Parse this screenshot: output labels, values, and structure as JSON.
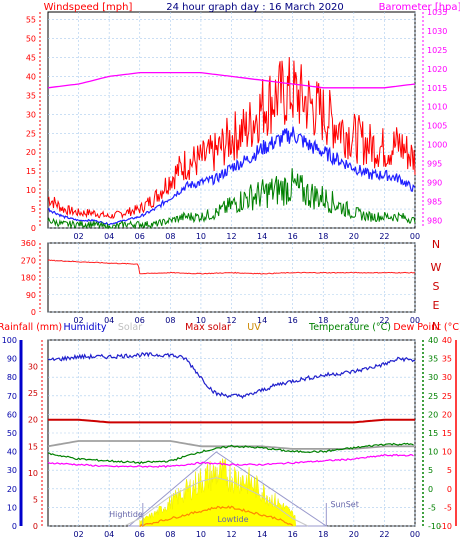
{
  "chart_data": [
    {
      "type": "line",
      "title": "24 hour graph day : 16 March 2020",
      "left_label": "Windspeed [mph]",
      "right_label": "Barometer [hpa]",
      "x_ticks": [
        "02",
        "04",
        "06",
        "08",
        "10",
        "12",
        "14",
        "16",
        "18",
        "20",
        "22",
        "00"
      ],
      "y_left_ticks": [
        0,
        5,
        10,
        15,
        20,
        25,
        30,
        35,
        40,
        45,
        50,
        55
      ],
      "y_left_range": [
        0,
        57
      ],
      "y_right_ticks": [
        980,
        985,
        990,
        995,
        1000,
        1005,
        1010,
        1015,
        1020,
        1025,
        1030,
        1035
      ],
      "y_right_range": [
        978,
        1035
      ],
      "grid": true,
      "series": [
        {
          "key": "gust",
          "color": "#ff0000",
          "x": [
            0,
            1,
            2,
            3,
            4,
            5,
            6,
            7,
            8,
            9,
            10,
            11,
            12,
            13,
            14,
            15,
            16,
            17,
            18,
            19,
            20,
            21,
            22,
            23,
            24
          ],
          "values": [
            8,
            5,
            4,
            4,
            3,
            4,
            5,
            8,
            13,
            17,
            18,
            20,
            24,
            26,
            32,
            35,
            36,
            33,
            30,
            27,
            24,
            22,
            21,
            22,
            18
          ]
        },
        {
          "key": "average",
          "color": "#2020ff",
          "x": [
            0,
            1,
            2,
            3,
            4,
            5,
            6,
            7,
            8,
            9,
            10,
            11,
            12,
            13,
            14,
            15,
            16,
            17,
            18,
            19,
            20,
            21,
            22,
            23,
            24
          ],
          "values": [
            5,
            3,
            2,
            2,
            1,
            2,
            3,
            5,
            8,
            11,
            12,
            13,
            16,
            18,
            21,
            23,
            25,
            22,
            20,
            18,
            16,
            14,
            14,
            13,
            10
          ]
        },
        {
          "key": "speed",
          "color": "#008000",
          "x": [
            0,
            1,
            2,
            3,
            4,
            5,
            6,
            7,
            8,
            9,
            10,
            11,
            12,
            13,
            14,
            15,
            16,
            17,
            18,
            19,
            20,
            21,
            22,
            23,
            24
          ],
          "values": [
            2,
            1,
            1,
            1,
            0,
            1,
            1,
            1,
            2,
            3,
            3,
            4,
            6,
            8,
            9,
            10,
            11,
            9,
            8,
            6,
            4,
            3,
            3,
            3,
            2
          ]
        },
        {
          "key": "barometer",
          "color": "#ff00ff",
          "x": [
            0,
            2,
            4,
            6,
            8,
            10,
            12,
            14,
            16,
            18,
            20,
            22,
            24
          ],
          "values": [
            1015,
            1016,
            1018,
            1019,
            1019,
            1019,
            1018,
            1017,
            1016,
            1015,
            1015,
            1015,
            1016
          ]
        }
      ]
    },
    {
      "type": "line",
      "x_ticks": [
        "02",
        "04",
        "06",
        "08",
        "10",
        "12",
        "14",
        "16",
        "18",
        "20",
        "22",
        "00"
      ],
      "y_left_ticks": [
        0,
        90,
        180,
        270,
        360
      ],
      "y_left_range": [
        0,
        360
      ],
      "direction_labels": [
        "N",
        "W",
        "S",
        "E",
        "N"
      ],
      "grid": true,
      "series": [
        {
          "key": "wind_direction",
          "color": "#ff2020",
          "x": [
            0,
            2,
            4,
            5.9,
            6,
            8,
            10,
            12,
            14,
            16,
            18,
            20,
            22,
            24
          ],
          "values": [
            270,
            262,
            255,
            250,
            200,
            205,
            200,
            205,
            200,
            205,
            205,
            205,
            205,
            205
          ]
        }
      ]
    },
    {
      "type": "line",
      "legend": [
        "Rainfall (mm)",
        "Humidity",
        "Solar",
        "Max solar",
        "UV",
        "Temperature (°C)",
        "Dew Point (°C)"
      ],
      "legend_colors": [
        "#ff0000",
        "#0000cc",
        "#c0c0c0",
        "#cc0000",
        "#cc8800",
        "#008000",
        "#ff0000"
      ],
      "x_ticks": [
        "02",
        "04",
        "06",
        "08",
        "10",
        "12",
        "14",
        "16",
        "18",
        "20",
        "22",
        "00"
      ],
      "rain_ticks": [
        0,
        5,
        10,
        15,
        20,
        25,
        30
      ],
      "humidity_ticks": [
        0,
        10,
        20,
        30,
        40,
        50,
        60,
        70,
        80,
        90,
        100
      ],
      "temp_ticks": [
        -10,
        -5,
        0,
        5,
        10,
        15,
        20,
        25,
        30,
        35,
        40
      ],
      "temp_range": [
        -10,
        40
      ],
      "grid": true,
      "annotations": [
        "Hightide",
        "Lowtide",
        "SunSet"
      ],
      "series": [
        {
          "key": "humidity",
          "color": "#2020cc",
          "x": [
            0,
            2,
            4,
            6,
            8,
            9,
            10,
            10.5,
            11,
            12,
            13,
            14,
            15,
            16,
            18,
            20,
            22,
            23,
            24
          ],
          "values": [
            89,
            91,
            91,
            92,
            92,
            90,
            80,
            75,
            71,
            70,
            70,
            73,
            76,
            78,
            81,
            83,
            87,
            90,
            89
          ]
        },
        {
          "key": "temperature",
          "color": "#008000",
          "x": [
            0,
            2,
            4,
            6,
            8,
            10,
            12,
            14,
            16,
            18,
            20,
            22,
            24
          ],
          "values": [
            9.5,
            8,
            7.5,
            7,
            7.5,
            10,
            11.5,
            11,
            10,
            10,
            11,
            12,
            12
          ]
        },
        {
          "key": "dewpoint",
          "color": "#ff00ff",
          "x": [
            0,
            2,
            4,
            6,
            8,
            10,
            12,
            14,
            16,
            18,
            20,
            22,
            24
          ],
          "values": [
            7,
            6.5,
            6,
            6,
            6,
            7,
            6.5,
            6.5,
            7,
            7.5,
            8,
            9,
            9
          ]
        },
        {
          "key": "rainfall_line",
          "color": "#cc0000",
          "x": [
            0,
            2,
            4,
            6,
            8,
            10,
            12,
            14,
            16,
            18,
            20,
            22,
            24
          ],
          "values": [
            20,
            20,
            19.5,
            19.5,
            19.5,
            19.5,
            19.5,
            19.5,
            19.5,
            19.5,
            19.5,
            20,
            20
          ]
        },
        {
          "key": "solar_gray",
          "color": "#a0a0a0",
          "x": [
            0,
            2,
            4,
            6,
            8,
            10,
            12,
            14,
            16,
            18,
            20,
            22,
            24
          ],
          "values": [
            15,
            16,
            16,
            16,
            16,
            15,
            15,
            15,
            14.5,
            14.5,
            14.5,
            15,
            15
          ]
        },
        {
          "key": "solar",
          "color": "#ffff00",
          "x": [
            5,
            6,
            7,
            8,
            9,
            10,
            11,
            12,
            13,
            14,
            15,
            16,
            17
          ],
          "values": [
            0,
            1,
            3,
            6,
            9,
            12,
            14,
            13,
            12,
            9,
            6,
            3,
            0
          ]
        },
        {
          "key": "max_solar",
          "color": "#c8c8c8",
          "x": [
            5,
            6,
            7,
            8,
            9,
            10,
            11,
            12,
            13,
            14,
            15,
            16,
            17
          ],
          "values": [
            0,
            2,
            5,
            8,
            10,
            12,
            13,
            12,
            10,
            8,
            5,
            2,
            0
          ]
        },
        {
          "key": "uv",
          "color": "#ff8800",
          "x": [
            6,
            7,
            8,
            9,
            10,
            11,
            12,
            13,
            14,
            15,
            16
          ],
          "values": [
            0,
            1,
            2,
            3,
            4,
            5,
            5,
            4,
            3,
            2,
            0
          ]
        }
      ]
    }
  ]
}
